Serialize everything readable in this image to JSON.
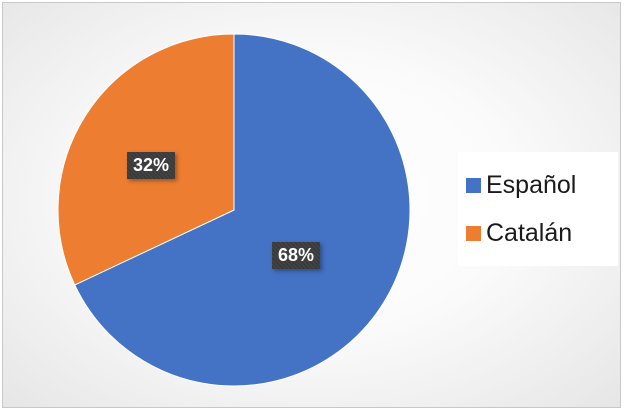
{
  "chart_data": {
    "type": "pie",
    "title": "",
    "categories": [
      "Español",
      "Catalán"
    ],
    "values": [
      68,
      32
    ],
    "data_labels": [
      "68%",
      "32%"
    ],
    "colors": [
      "#4472C4",
      "#ED7D31"
    ],
    "legend_position": "right"
  }
}
